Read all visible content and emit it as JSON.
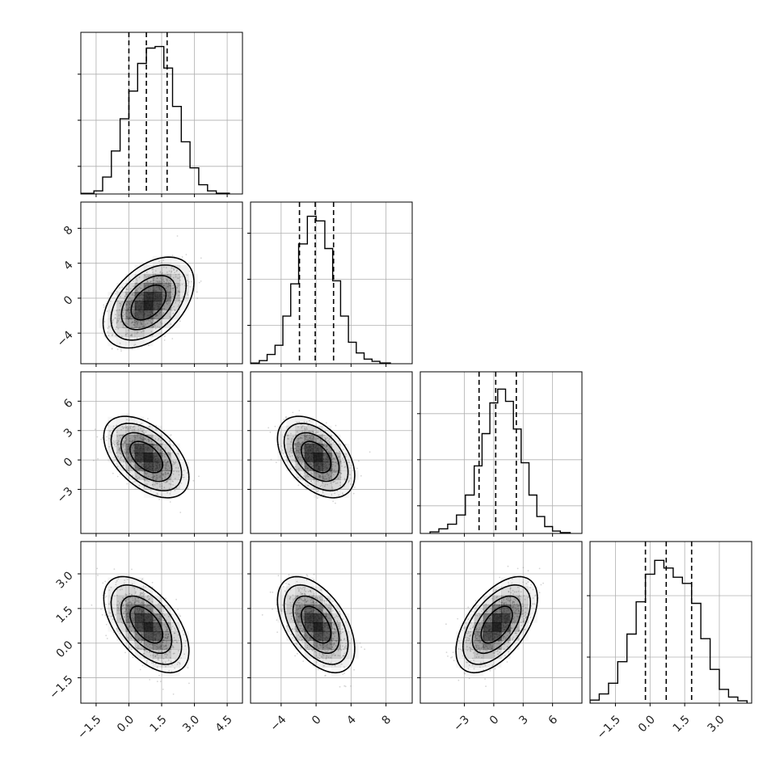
{
  "chart_data": {
    "type": "corner",
    "n_params": 4,
    "params": [
      {
        "range": [
          -2.2,
          5.2
        ],
        "ticks": [
          -1.5,
          0.0,
          1.5,
          3.0,
          4.5
        ],
        "tick_labels": [
          "−1.5",
          "0.0",
          "1.5",
          "3.0",
          "4.5"
        ],
        "quantiles": [
          0.0,
          0.8,
          1.75
        ],
        "hist": [
          [
            -2.2,
            0.004
          ],
          [
            -1.6,
            0.02
          ],
          [
            -1.2,
            0.11
          ],
          [
            -0.8,
            0.28
          ],
          [
            -0.4,
            0.49
          ],
          [
            0.0,
            0.67
          ],
          [
            0.4,
            0.85
          ],
          [
            0.8,
            0.95
          ],
          [
            1.2,
            0.96
          ],
          [
            1.6,
            0.82
          ],
          [
            2.0,
            0.57
          ],
          [
            2.4,
            0.34
          ],
          [
            2.8,
            0.17
          ],
          [
            3.2,
            0.06
          ],
          [
            3.6,
            0.02
          ],
          [
            4.0,
            0.005
          ],
          [
            4.6,
            0.0
          ]
        ],
        "hist_ticks": [
          0.18,
          0.48,
          0.78
        ]
      },
      {
        "range": [
          -7.5,
          11.0
        ],
        "ticks": [
          -4,
          0,
          4,
          8
        ],
        "tick_labels": [
          "−4",
          "0",
          "4",
          "8"
        ],
        "quantiles": [
          -1.9,
          -0.1,
          2.0
        ],
        "hist": [
          [
            -7.5,
            0.004
          ],
          [
            -6.5,
            0.02
          ],
          [
            -5.6,
            0.06
          ],
          [
            -4.7,
            0.12
          ],
          [
            -3.8,
            0.31
          ],
          [
            -2.9,
            0.52
          ],
          [
            -2.0,
            0.78
          ],
          [
            -1.0,
            0.96
          ],
          [
            0.0,
            0.93
          ],
          [
            1.0,
            0.75
          ],
          [
            1.9,
            0.54
          ],
          [
            2.8,
            0.31
          ],
          [
            3.7,
            0.14
          ],
          [
            4.6,
            0.07
          ],
          [
            5.5,
            0.03
          ],
          [
            6.4,
            0.015
          ],
          [
            7.3,
            0.005
          ],
          [
            8.5,
            0.0
          ]
        ],
        "hist_ticks": [
          0.25,
          0.55,
          0.85
        ]
      },
      {
        "range": [
          -7.5,
          9.0
        ],
        "ticks": [
          -3,
          0,
          3,
          6
        ],
        "tick_labels": [
          "−3",
          "0",
          "3",
          "6"
        ],
        "quantiles": [
          -1.5,
          0.2,
          2.3
        ],
        "hist": [
          [
            -6.5,
            0.01
          ],
          [
            -5.6,
            0.03
          ],
          [
            -4.7,
            0.06
          ],
          [
            -3.8,
            0.12
          ],
          [
            -2.9,
            0.25
          ],
          [
            -2.0,
            0.44
          ],
          [
            -1.2,
            0.65
          ],
          [
            -0.4,
            0.85
          ],
          [
            0.4,
            0.94
          ],
          [
            1.2,
            0.86
          ],
          [
            2.0,
            0.68
          ],
          [
            2.8,
            0.46
          ],
          [
            3.6,
            0.25
          ],
          [
            4.4,
            0.11
          ],
          [
            5.2,
            0.045
          ],
          [
            6.0,
            0.015
          ],
          [
            6.8,
            0.005
          ],
          [
            7.8,
            0.0
          ]
        ],
        "hist_ticks": [
          0.18,
          0.48,
          0.78
        ]
      },
      {
        "range": [
          -2.6,
          4.4
        ],
        "ticks": [
          -1.5,
          0.0,
          1.5,
          3.0
        ],
        "tick_labels": [
          "−1.5",
          "0.0",
          "1.5",
          "3.0"
        ],
        "quantiles": [
          -0.2,
          0.7,
          1.8
        ],
        "hist": [
          [
            -2.6,
            0.02
          ],
          [
            -2.2,
            0.06
          ],
          [
            -1.8,
            0.13
          ],
          [
            -1.4,
            0.27
          ],
          [
            -1.0,
            0.45
          ],
          [
            -0.6,
            0.66
          ],
          [
            -0.2,
            0.84
          ],
          [
            0.2,
            0.93
          ],
          [
            0.6,
            0.88
          ],
          [
            1.0,
            0.82
          ],
          [
            1.4,
            0.78
          ],
          [
            1.8,
            0.65
          ],
          [
            2.2,
            0.42
          ],
          [
            2.6,
            0.22
          ],
          [
            3.0,
            0.09
          ],
          [
            3.4,
            0.04
          ],
          [
            3.8,
            0.015
          ],
          [
            4.2,
            0.0
          ]
        ],
        "hist_ticks": [
          0.3,
          0.7
        ]
      }
    ],
    "pairs": [
      {
        "row": 1,
        "col": 0,
        "mean": [
          0.9,
          -0.5
        ],
        "sd": [
          0.8,
          2.0
        ],
        "rho": 0.45
      },
      {
        "row": 2,
        "col": 0,
        "mean": [
          0.8,
          0.3
        ],
        "sd": [
          0.75,
          1.6
        ],
        "rho": -0.5
      },
      {
        "row": 2,
        "col": 1,
        "mean": [
          0.0,
          0.3
        ],
        "sd": [
          1.7,
          1.6
        ],
        "rho": -0.45
      },
      {
        "row": 3,
        "col": 0,
        "mean": [
          0.8,
          0.8
        ],
        "sd": [
          0.75,
          0.8
        ],
        "rho": -0.55
      },
      {
        "row": 3,
        "col": 1,
        "mean": [
          0.0,
          0.8
        ],
        "sd": [
          1.7,
          0.8
        ],
        "rho": -0.5
      },
      {
        "row": 3,
        "col": 2,
        "mean": [
          0.3,
          0.8
        ],
        "sd": [
          1.6,
          0.8
        ],
        "rho": 0.55
      }
    ],
    "contour_levels": [
      1.0,
      1.55,
      2.15,
      2.6
    ],
    "grid": true,
    "xlabel": "",
    "ylabel": "",
    "colors": {
      "axes": "#000000",
      "grid": "#b0b0b0",
      "points": "#888888",
      "quantile_line": "#000000",
      "contour": "#000000",
      "density": "#000000"
    }
  }
}
